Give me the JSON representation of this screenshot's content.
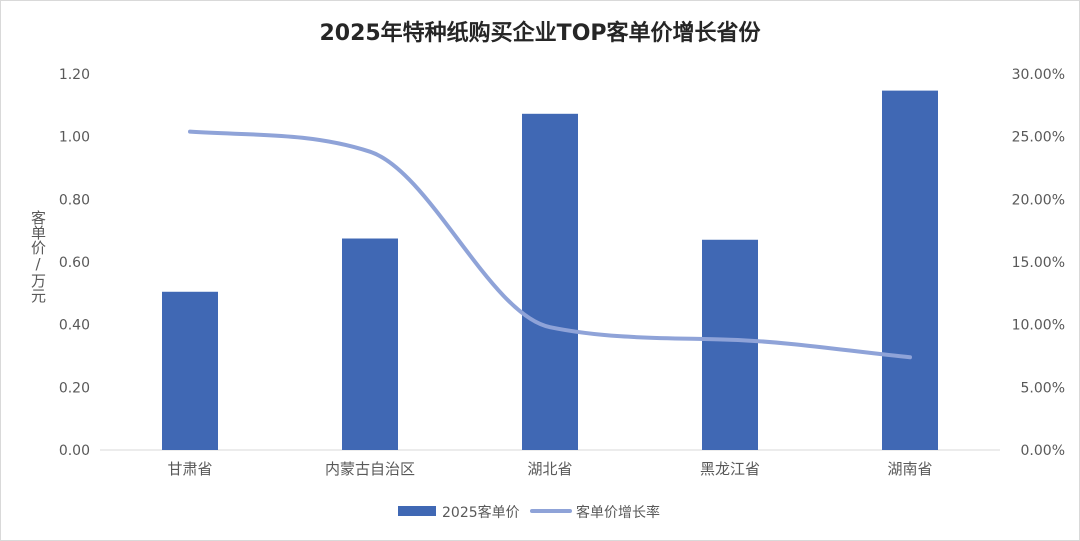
{
  "chart_data": {
    "type": "bar",
    "title": "2025年特种纸购买企业TOP客单价增长省份",
    "ylabel": "客单价/万元",
    "categories": [
      "甘肃省",
      "内蒙古自治区",
      "湖北省",
      "黑龙江省",
      "湖南省"
    ],
    "series": [
      {
        "name": "2025客单价",
        "type": "bar",
        "axis": "left",
        "color": "#4068B4",
        "values": [
          0.505,
          0.675,
          1.073,
          0.671,
          1.147
        ]
      },
      {
        "name": "客单价增长率",
        "type": "line",
        "axis": "right",
        "color": "#8FA3D8",
        "values": [
          25.4,
          23.8,
          9.8,
          8.8,
          7.4
        ]
      }
    ],
    "ylim": [
      0,
      1.2
    ],
    "y_ticks": [
      "0.00",
      "0.20",
      "0.40",
      "0.60",
      "0.80",
      "1.00",
      "1.20"
    ],
    "y2lim": [
      0,
      30
    ],
    "y2_ticks": [
      "0.00%",
      "5.00%",
      "10.00%",
      "15.00%",
      "20.00%",
      "25.00%",
      "30.00%"
    ],
    "grid": false,
    "legend_position": "bottom"
  }
}
